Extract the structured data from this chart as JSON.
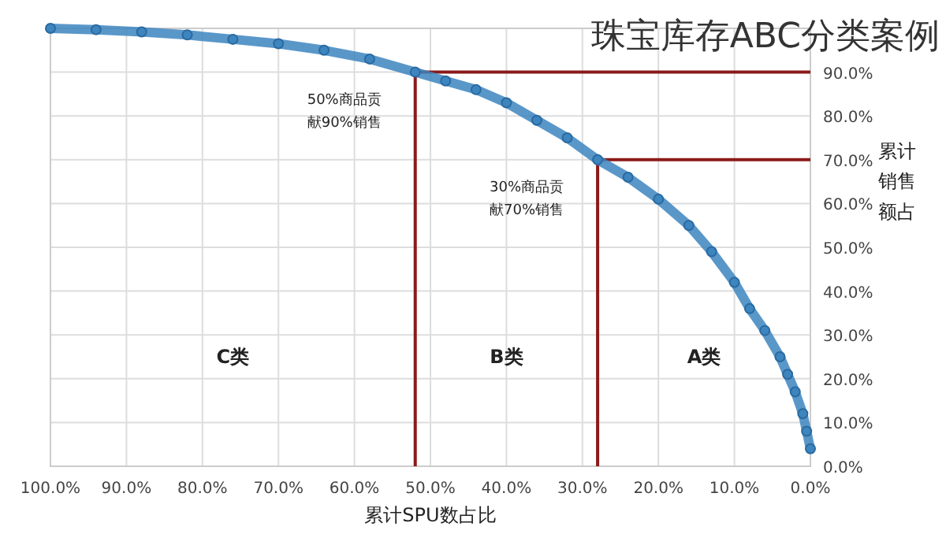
{
  "chart_data": {
    "type": "line",
    "title": "珠宝库存ABC分类案例",
    "xlabel": "累计SPU数占比",
    "ylabel": "累计销售额占",
    "x": [
      0,
      0.5,
      1,
      2,
      3,
      4,
      6,
      8,
      10,
      13,
      16,
      20,
      24,
      28,
      32,
      36,
      40,
      44,
      48,
      52,
      58,
      64,
      70,
      76,
      82,
      88,
      94,
      100
    ],
    "series": [
      {
        "color": "#3d85bf",
        "values": [
          4,
          8,
          12,
          17,
          21,
          25,
          31,
          36,
          42,
          49,
          55,
          61,
          66,
          70,
          75,
          79,
          83,
          86,
          88,
          90,
          93,
          95,
          96.5,
          97.5,
          98.5,
          99.2,
          99.7,
          100
        ]
      }
    ],
    "marker": "circle",
    "grid": true,
    "xlim": [
      100,
      0
    ],
    "ylim": [
      0,
      100
    ],
    "xticks": [
      {
        "value": 0,
        "label": "0.0%"
      },
      {
        "value": 10,
        "label": "10.0%"
      },
      {
        "value": 20,
        "label": "20.0%"
      },
      {
        "value": 30,
        "label": "30.0%"
      },
      {
        "value": 40,
        "label": "40.0%"
      },
      {
        "value": 50,
        "label": "50.0%"
      },
      {
        "value": 60,
        "label": "60.0%"
      },
      {
        "value": 70,
        "label": "70.0%"
      },
      {
        "value": 80,
        "label": "80.0%"
      },
      {
        "value": 90,
        "label": "90.0%"
      },
      {
        "value": 100,
        "label": "100.0%"
      }
    ],
    "yticks": [
      {
        "value": 0,
        "label": "0.0%"
      },
      {
        "value": 10,
        "label": "10.0%"
      },
      {
        "value": 20,
        "label": "20.0%"
      },
      {
        "value": 30,
        "label": "30.0%"
      },
      {
        "value": 40,
        "label": "40.0%"
      },
      {
        "value": 50,
        "label": "50.0%"
      },
      {
        "value": 60,
        "label": "60.0%"
      },
      {
        "value": 70,
        "label": "70.0%"
      },
      {
        "value": 80,
        "label": "80.0%"
      },
      {
        "value": 90,
        "label": "90.0%"
      }
    ],
    "ref_lines": [
      {
        "axis": "x",
        "value": 52,
        "color": "#8b1a1a"
      },
      {
        "axis": "y",
        "value": 90,
        "color": "#8b1a1a"
      },
      {
        "axis": "x",
        "value": 28,
        "color": "#8b1a1a"
      },
      {
        "axis": "y",
        "value": 70,
        "color": "#8b1a1a"
      }
    ],
    "annotations": [
      "50%商品贡献90%销售",
      "30%商品贡献70%销售",
      "C类",
      "B类",
      "A类"
    ]
  }
}
